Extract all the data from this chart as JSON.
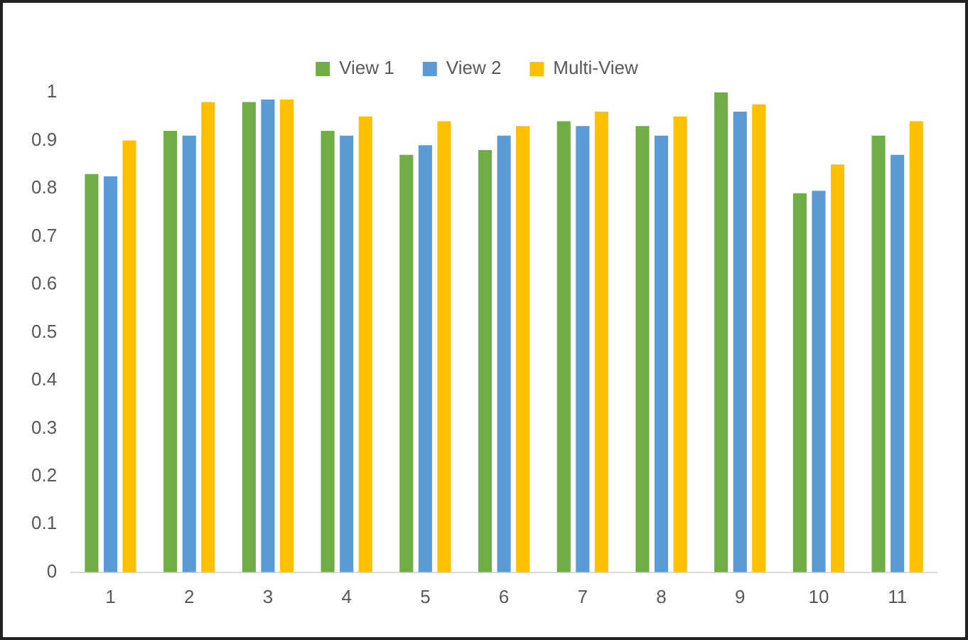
{
  "chart_data": {
    "type": "bar",
    "categories": [
      "1",
      "2",
      "3",
      "4",
      "5",
      "6",
      "7",
      "8",
      "9",
      "10",
      "11"
    ],
    "series": [
      {
        "name": "View 1",
        "color": "#70ad47",
        "values": [
          0.83,
          0.92,
          0.98,
          0.92,
          0.87,
          0.88,
          0.94,
          0.93,
          1.0,
          0.79,
          0.91
        ]
      },
      {
        "name": "View 2",
        "color": "#5b9bd5",
        "values": [
          0.825,
          0.91,
          0.985,
          0.91,
          0.89,
          0.91,
          0.93,
          0.91,
          0.96,
          0.795,
          0.87
        ]
      },
      {
        "name": "Multi-View",
        "color": "#ffc000",
        "values": [
          0.9,
          0.98,
          0.985,
          0.95,
          0.94,
          0.93,
          0.96,
          0.95,
          0.975,
          0.85,
          0.94
        ]
      }
    ],
    "ylim": [
      0,
      1
    ],
    "yticks": [
      0,
      0.1,
      0.2,
      0.3,
      0.4,
      0.5,
      0.6,
      0.7,
      0.8,
      0.9,
      1
    ],
    "grid": false,
    "legend": "top"
  }
}
